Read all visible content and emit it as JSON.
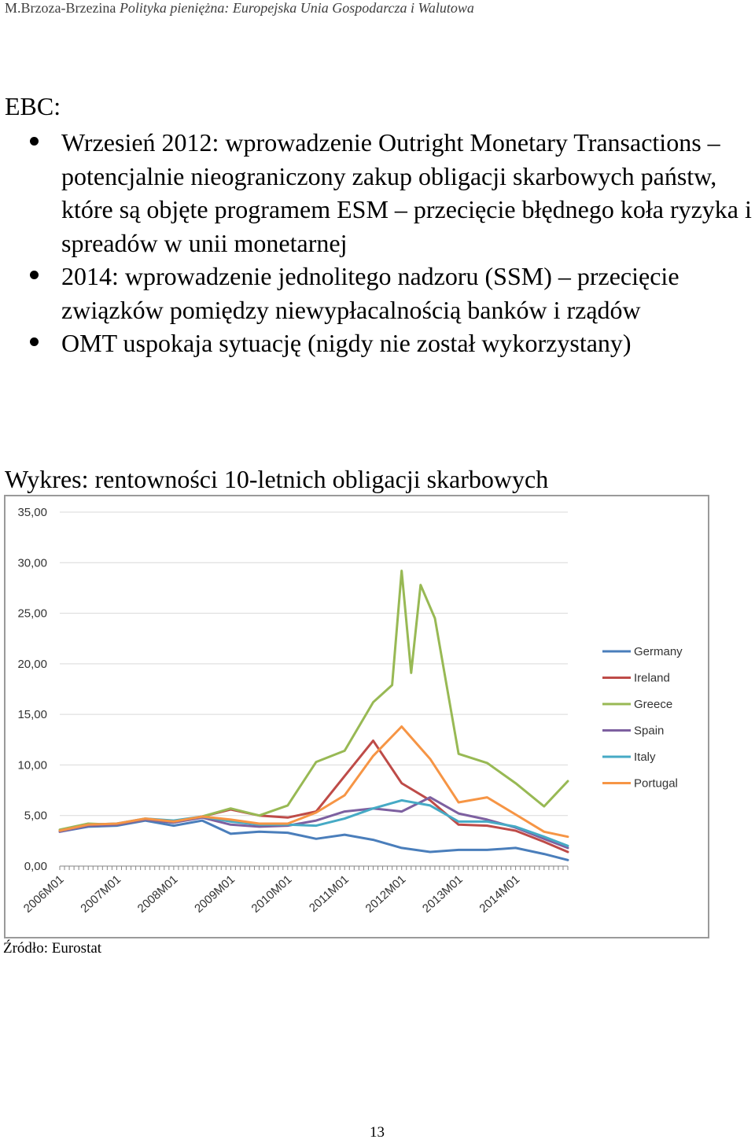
{
  "header": {
    "author": "M.Brzoza-Brzezina ",
    "title": "Polityka pieniężna: Europejska Unia Gospodarcza i Walutowa"
  },
  "section": {
    "heading": "EBC:",
    "bullets": [
      "Wrzesień 2012: wprowadzenie Outright Monetary Transactions – potencjalnie nieograniczony zakup obligacji skarbowych państw, które są objęte programem ESM – przecięcie błędnego koła ryzyka i spreadów w unii monetarnej",
      "2014: wprowadzenie jednolitego nadzoru (SSM) – przecięcie związków pomiędzy niewypłacalnością banków i rządów",
      "OMT uspokaja sytuację (nigdy nie został wykorzystany)"
    ]
  },
  "chart_caption": "Wykres: rentowności 10-letnich obligacji skarbowych",
  "source": "Źródło: Eurostat",
  "page_number": "13",
  "chart_data": {
    "type": "line",
    "title": "",
    "xlabel": "",
    "ylabel": "",
    "ylim": [
      0,
      35
    ],
    "y_ticks": [
      "0,00",
      "5,00",
      "10,00",
      "15,00",
      "20,00",
      "25,00",
      "30,00",
      "35,00"
    ],
    "x_ticks": [
      "2006M01",
      "2007M01",
      "2008M01",
      "2009M01",
      "2010M01",
      "2011M01",
      "2012M01",
      "2013M01",
      "2014M01"
    ],
    "x_domain": [
      "2006M01",
      "2014M12"
    ],
    "grid": true,
    "legend_position": "right",
    "series": [
      {
        "name": "Germany",
        "color": "#4a7ebb",
        "points": [
          [
            "2006M01",
            3.4
          ],
          [
            "2006M07",
            3.9
          ],
          [
            "2007M01",
            4.0
          ],
          [
            "2007M07",
            4.5
          ],
          [
            "2008M01",
            4.0
          ],
          [
            "2008M07",
            4.5
          ],
          [
            "2009M01",
            3.2
          ],
          [
            "2009M07",
            3.4
          ],
          [
            "2010M01",
            3.3
          ],
          [
            "2010M07",
            2.7
          ],
          [
            "2011M01",
            3.1
          ],
          [
            "2011M07",
            2.6
          ],
          [
            "2012M01",
            1.8
          ],
          [
            "2012M07",
            1.4
          ],
          [
            "2013M01",
            1.6
          ],
          [
            "2013M07",
            1.6
          ],
          [
            "2014M01",
            1.8
          ],
          [
            "2014M07",
            1.2
          ],
          [
            "2014M12",
            0.6
          ]
        ]
      },
      {
        "name": "Ireland",
        "color": "#be4b48",
        "points": [
          [
            "2006M01",
            3.5
          ],
          [
            "2006M07",
            4.0
          ],
          [
            "2007M01",
            4.1
          ],
          [
            "2007M07",
            4.6
          ],
          [
            "2008M01",
            4.4
          ],
          [
            "2008M07",
            4.9
          ],
          [
            "2009M01",
            5.6
          ],
          [
            "2009M07",
            5.0
          ],
          [
            "2010M01",
            4.8
          ],
          [
            "2010M07",
            5.4
          ],
          [
            "2011M01",
            8.9
          ],
          [
            "2011M07",
            12.4
          ],
          [
            "2012M01",
            8.2
          ],
          [
            "2012M07",
            6.5
          ],
          [
            "2013M01",
            4.1
          ],
          [
            "2013M07",
            4.0
          ],
          [
            "2014M01",
            3.5
          ],
          [
            "2014M07",
            2.4
          ],
          [
            "2014M12",
            1.4
          ]
        ]
      },
      {
        "name": "Greece",
        "color": "#98b954",
        "points": [
          [
            "2006M01",
            3.6
          ],
          [
            "2006M07",
            4.2
          ],
          [
            "2007M01",
            4.1
          ],
          [
            "2007M07",
            4.6
          ],
          [
            "2008M01",
            4.3
          ],
          [
            "2008M07",
            4.9
          ],
          [
            "2009M01",
            5.7
          ],
          [
            "2009M07",
            5.0
          ],
          [
            "2010M01",
            6.0
          ],
          [
            "2010M07",
            10.3
          ],
          [
            "2011M01",
            11.4
          ],
          [
            "2011M07",
            16.2
          ],
          [
            "2011M11",
            17.9
          ],
          [
            "2012M01",
            29.2
          ],
          [
            "2012M03",
            19.1
          ],
          [
            "2012M05",
            27.8
          ],
          [
            "2012M08",
            24.5
          ],
          [
            "2013M01",
            11.1
          ],
          [
            "2013M07",
            10.2
          ],
          [
            "2014M01",
            8.2
          ],
          [
            "2014M07",
            5.9
          ],
          [
            "2014M12",
            8.4
          ]
        ]
      },
      {
        "name": "Spain",
        "color": "#7d60a0",
        "points": [
          [
            "2006M01",
            3.4
          ],
          [
            "2006M07",
            4.0
          ],
          [
            "2007M01",
            4.1
          ],
          [
            "2007M07",
            4.6
          ],
          [
            "2008M01",
            4.3
          ],
          [
            "2008M07",
            4.8
          ],
          [
            "2009M01",
            4.1
          ],
          [
            "2009M07",
            3.9
          ],
          [
            "2010M01",
            4.0
          ],
          [
            "2010M07",
            4.5
          ],
          [
            "2011M01",
            5.4
          ],
          [
            "2011M07",
            5.7
          ],
          [
            "2012M01",
            5.4
          ],
          [
            "2012M07",
            6.8
          ],
          [
            "2013M01",
            5.2
          ],
          [
            "2013M07",
            4.6
          ],
          [
            "2014M01",
            3.8
          ],
          [
            "2014M07",
            2.7
          ],
          [
            "2014M12",
            1.8
          ]
        ]
      },
      {
        "name": "Italy",
        "color": "#46aac5",
        "points": [
          [
            "2006M01",
            3.5
          ],
          [
            "2006M07",
            4.1
          ],
          [
            "2007M01",
            4.2
          ],
          [
            "2007M07",
            4.7
          ],
          [
            "2008M01",
            4.5
          ],
          [
            "2008M07",
            4.9
          ],
          [
            "2009M01",
            4.4
          ],
          [
            "2009M07",
            4.1
          ],
          [
            "2010M01",
            4.1
          ],
          [
            "2010M07",
            4.0
          ],
          [
            "2011M01",
            4.7
          ],
          [
            "2011M07",
            5.7
          ],
          [
            "2012M01",
            6.5
          ],
          [
            "2012M07",
            6.0
          ],
          [
            "2013M01",
            4.4
          ],
          [
            "2013M07",
            4.4
          ],
          [
            "2014M01",
            3.9
          ],
          [
            "2014M07",
            2.9
          ],
          [
            "2014M12",
            2.0
          ]
        ]
      },
      {
        "name": "Portugal",
        "color": "#f69545",
        "points": [
          [
            "2006M01",
            3.5
          ],
          [
            "2006M07",
            4.1
          ],
          [
            "2007M01",
            4.2
          ],
          [
            "2007M07",
            4.7
          ],
          [
            "2008M01",
            4.4
          ],
          [
            "2008M07",
            4.9
          ],
          [
            "2009M01",
            4.6
          ],
          [
            "2009M07",
            4.2
          ],
          [
            "2010M01",
            4.2
          ],
          [
            "2010M07",
            5.3
          ],
          [
            "2011M01",
            7.0
          ],
          [
            "2011M07",
            10.9
          ],
          [
            "2012M01",
            13.8
          ],
          [
            "2012M07",
            10.6
          ],
          [
            "2013M01",
            6.3
          ],
          [
            "2013M07",
            6.8
          ],
          [
            "2014M01",
            5.1
          ],
          [
            "2014M07",
            3.4
          ],
          [
            "2014M12",
            2.9
          ]
        ]
      }
    ]
  }
}
